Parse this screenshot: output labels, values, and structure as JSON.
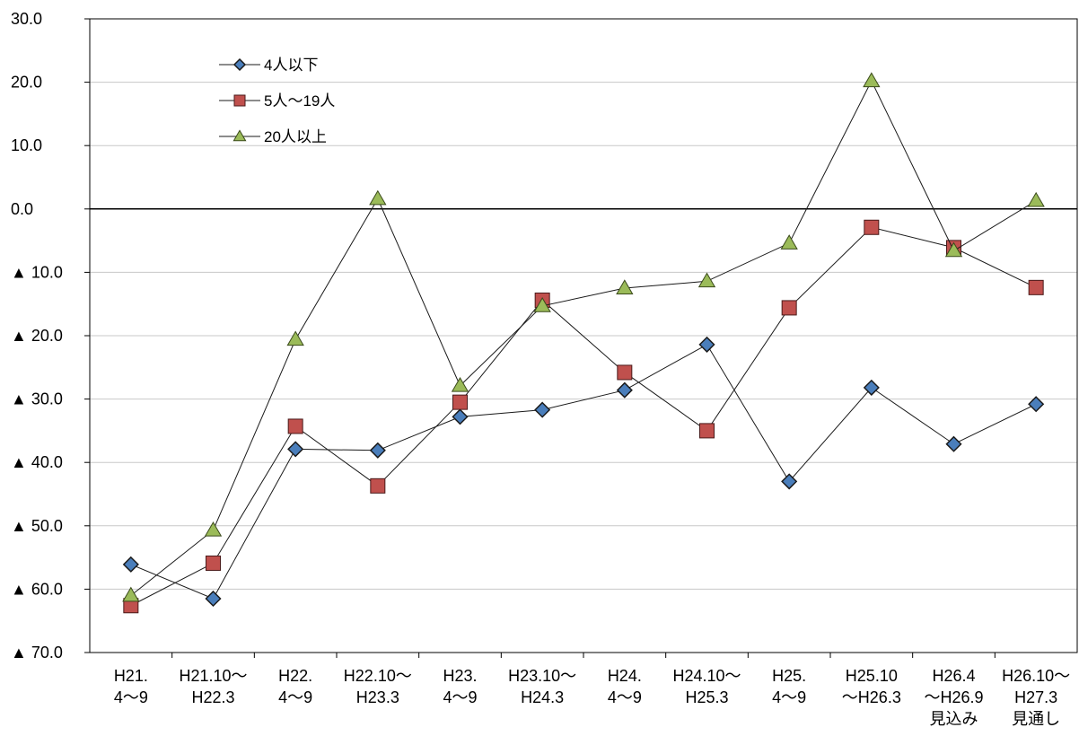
{
  "chart_data": {
    "type": "line",
    "categories": [
      [
        "H21.",
        "4～9"
      ],
      [
        "H21.10～",
        "H22.3"
      ],
      [
        "H22.",
        "4～9"
      ],
      [
        "H22.10～",
        "H23.3"
      ],
      [
        "H23.",
        "4～9"
      ],
      [
        "H23.10～",
        "H24.3"
      ],
      [
        "H24.",
        "4～9"
      ],
      [
        "H24.10～",
        "H25.3"
      ],
      [
        "H25.",
        "4～9"
      ],
      [
        "H25.10",
        "～H26.3"
      ],
      [
        "H26.4",
        "～H26.9",
        "見込み"
      ],
      [
        "H26.10～",
        "H27.3",
        "見通し"
      ]
    ],
    "y_ticks": [
      {
        "value": 30,
        "label": "30.0"
      },
      {
        "value": 20,
        "label": "20.0"
      },
      {
        "value": 10,
        "label": "10.0"
      },
      {
        "value": 0,
        "label": "0.0"
      },
      {
        "value": -10,
        "label": "▲ 10.0"
      },
      {
        "value": -20,
        "label": "▲ 20.0"
      },
      {
        "value": -30,
        "label": "▲ 30.0"
      },
      {
        "value": -40,
        "label": "▲ 40.0"
      },
      {
        "value": -50,
        "label": "▲ 50.0"
      },
      {
        "value": -60,
        "label": "▲ 60.0"
      },
      {
        "value": -70,
        "label": "▲ 70.0"
      }
    ],
    "ylim": [
      -70,
      30
    ],
    "grid": true,
    "legend_position": "top-left",
    "series": [
      {
        "name": "4人以下",
        "marker": "diamond",
        "color": "#4a7ebb",
        "values": [
          -56.1,
          -61.5,
          -37.9,
          -38.1,
          -32.8,
          -31.7,
          -28.6,
          -21.4,
          -43.0,
          -28.2,
          -37.1,
          -30.8
        ]
      },
      {
        "name": "5人～19人",
        "marker": "square",
        "color": "#c0504d",
        "values": [
          -62.6,
          -55.9,
          -34.3,
          -43.7,
          -30.5,
          -14.4,
          -25.8,
          -35.0,
          -15.6,
          -2.9,
          -6.1,
          -12.4
        ]
      },
      {
        "name": "20人以上",
        "marker": "triangle",
        "color": "#9bbb59",
        "values": [
          -61.0,
          -50.7,
          -20.6,
          1.6,
          -27.9,
          -15.3,
          -12.5,
          -11.4,
          -5.4,
          20.2,
          -6.6,
          1.3
        ]
      }
    ]
  }
}
